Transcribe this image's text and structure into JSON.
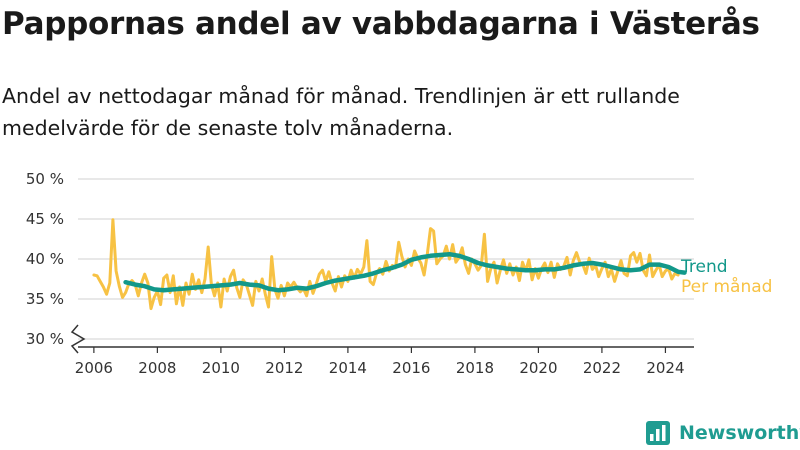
{
  "header": {
    "title": "Pappornas andel av vabbdagarna i Västerås",
    "subtitle": "Andel av nettodagar månad för månad. Trendlinjen är ett rullande medelvärde för de senaste tolv månaderna."
  },
  "brand": {
    "name": "Newsworthy",
    "icon": "newsworthy-logo-icon"
  },
  "colors": {
    "monthly": "#f7c244",
    "trend": "#12988a",
    "grid": "#d9d9d9",
    "axis": "#333333",
    "text": "#333333"
  },
  "chart_data": {
    "type": "line",
    "title": "Pappornas andel av vabbdagarna i Västerås",
    "xlabel": "",
    "ylabel": "",
    "xlim": [
      2005.5,
      2024.9
    ],
    "ylim": [
      29,
      50
    ],
    "axis_break": true,
    "grid": "horizontal",
    "legend_placement": "right, at line ends",
    "y_ticks": [
      {
        "value": 30,
        "label": "30 %"
      },
      {
        "value": 35,
        "label": "35 %"
      },
      {
        "value": 40,
        "label": "40 %"
      },
      {
        "value": 45,
        "label": "45 %"
      },
      {
        "value": 50,
        "label": "50 %"
      }
    ],
    "x_ticks": [
      {
        "value": 2006,
        "label": "2006"
      },
      {
        "value": 2008,
        "label": "2008"
      },
      {
        "value": 2010,
        "label": "2010"
      },
      {
        "value": 2012,
        "label": "2012"
      },
      {
        "value": 2014,
        "label": "2014"
      },
      {
        "value": 2016,
        "label": "2016"
      },
      {
        "value": 2018,
        "label": "2018"
      },
      {
        "value": 2020,
        "label": "2020"
      },
      {
        "value": 2022,
        "label": "2022"
      },
      {
        "value": 2024,
        "label": "2024"
      }
    ],
    "series": [
      {
        "name": "Per månad",
        "points": [
          [
            2006.0,
            38.0
          ],
          [
            2006.1,
            37.9
          ],
          [
            2006.2,
            37.2
          ],
          [
            2006.3,
            36.5
          ],
          [
            2006.4,
            35.6
          ],
          [
            2006.5,
            37.0
          ],
          [
            2006.6,
            44.9
          ],
          [
            2006.7,
            38.5
          ],
          [
            2006.8,
            36.6
          ],
          [
            2006.9,
            35.2
          ],
          [
            2007.0,
            35.8
          ],
          [
            2007.1,
            36.9
          ],
          [
            2007.2,
            37.3
          ],
          [
            2007.3,
            36.8
          ],
          [
            2007.4,
            35.4
          ],
          [
            2007.5,
            37.0
          ],
          [
            2007.6,
            38.1
          ],
          [
            2007.7,
            37.0
          ],
          [
            2007.8,
            33.8
          ],
          [
            2007.9,
            35.2
          ],
          [
            2008.0,
            36.0
          ],
          [
            2008.1,
            34.3
          ],
          [
            2008.2,
            37.6
          ],
          [
            2008.3,
            38.0
          ],
          [
            2008.4,
            35.8
          ],
          [
            2008.5,
            37.9
          ],
          [
            2008.6,
            34.4
          ],
          [
            2008.7,
            36.5
          ],
          [
            2008.8,
            34.2
          ],
          [
            2008.9,
            37.0
          ],
          [
            2009.0,
            35.6
          ],
          [
            2009.1,
            38.1
          ],
          [
            2009.2,
            36.2
          ],
          [
            2009.3,
            37.4
          ],
          [
            2009.4,
            35.8
          ],
          [
            2009.5,
            37.5
          ],
          [
            2009.6,
            41.5
          ],
          [
            2009.7,
            36.8
          ],
          [
            2009.8,
            35.4
          ],
          [
            2009.9,
            37.0
          ],
          [
            2010.0,
            34.0
          ],
          [
            2010.1,
            37.5
          ],
          [
            2010.2,
            36.0
          ],
          [
            2010.3,
            37.8
          ],
          [
            2010.4,
            38.6
          ],
          [
            2010.5,
            36.4
          ],
          [
            2010.6,
            35.2
          ],
          [
            2010.7,
            37.4
          ],
          [
            2010.8,
            36.8
          ],
          [
            2010.9,
            35.5
          ],
          [
            2011.0,
            34.2
          ],
          [
            2011.1,
            37.2
          ],
          [
            2011.2,
            36.0
          ],
          [
            2011.3,
            37.5
          ],
          [
            2011.4,
            35.6
          ],
          [
            2011.5,
            34.0
          ],
          [
            2011.6,
            40.3
          ],
          [
            2011.7,
            36.2
          ],
          [
            2011.8,
            35.1
          ],
          [
            2011.9,
            36.7
          ],
          [
            2012.0,
            35.4
          ],
          [
            2012.1,
            37.0
          ],
          [
            2012.2,
            36.5
          ],
          [
            2012.3,
            37.1
          ],
          [
            2012.4,
            36.4
          ],
          [
            2012.5,
            35.9
          ],
          [
            2012.6,
            36.3
          ],
          [
            2012.7,
            35.4
          ],
          [
            2012.8,
            37.2
          ],
          [
            2012.9,
            35.7
          ],
          [
            2013.0,
            36.8
          ],
          [
            2013.1,
            38.1
          ],
          [
            2013.2,
            38.6
          ],
          [
            2013.3,
            37.2
          ],
          [
            2013.4,
            38.4
          ],
          [
            2013.5,
            37.0
          ],
          [
            2013.6,
            36.0
          ],
          [
            2013.7,
            37.8
          ],
          [
            2013.8,
            36.5
          ],
          [
            2013.9,
            37.9
          ],
          [
            2014.0,
            37.2
          ],
          [
            2014.1,
            38.6
          ],
          [
            2014.2,
            37.6
          ],
          [
            2014.3,
            38.7
          ],
          [
            2014.4,
            38.1
          ],
          [
            2014.5,
            39.0
          ],
          [
            2014.6,
            42.3
          ],
          [
            2014.7,
            37.2
          ],
          [
            2014.8,
            36.8
          ],
          [
            2014.9,
            38.2
          ],
          [
            2015.0,
            38.8
          ],
          [
            2015.1,
            38.1
          ],
          [
            2015.2,
            39.7
          ],
          [
            2015.3,
            38.5
          ],
          [
            2015.4,
            39.2
          ],
          [
            2015.5,
            38.9
          ],
          [
            2015.6,
            42.1
          ],
          [
            2015.7,
            40.3
          ],
          [
            2015.8,
            39.0
          ],
          [
            2015.9,
            40.0
          ],
          [
            2016.0,
            39.2
          ],
          [
            2016.1,
            41.0
          ],
          [
            2016.2,
            40.1
          ],
          [
            2016.3,
            39.5
          ],
          [
            2016.4,
            38.0
          ],
          [
            2016.5,
            40.6
          ],
          [
            2016.6,
            43.8
          ],
          [
            2016.7,
            43.5
          ],
          [
            2016.8,
            39.4
          ],
          [
            2016.9,
            40.0
          ],
          [
            2017.0,
            40.4
          ],
          [
            2017.1,
            41.6
          ],
          [
            2017.2,
            40.0
          ],
          [
            2017.3,
            41.8
          ],
          [
            2017.4,
            39.6
          ],
          [
            2017.5,
            40.2
          ],
          [
            2017.6,
            41.4
          ],
          [
            2017.7,
            39.3
          ],
          [
            2017.8,
            38.2
          ],
          [
            2017.9,
            40.0
          ],
          [
            2018.0,
            39.4
          ],
          [
            2018.1,
            38.6
          ],
          [
            2018.2,
            39.2
          ],
          [
            2018.3,
            43.1
          ],
          [
            2018.4,
            37.2
          ],
          [
            2018.5,
            38.8
          ],
          [
            2018.6,
            39.6
          ],
          [
            2018.7,
            37.0
          ],
          [
            2018.8,
            38.6
          ],
          [
            2018.9,
            39.9
          ],
          [
            2019.0,
            38.2
          ],
          [
            2019.1,
            39.4
          ],
          [
            2019.2,
            38.0
          ],
          [
            2019.3,
            39.0
          ],
          [
            2019.4,
            37.3
          ],
          [
            2019.5,
            39.6
          ],
          [
            2019.6,
            38.5
          ],
          [
            2019.7,
            39.9
          ],
          [
            2019.8,
            37.4
          ],
          [
            2019.9,
            38.8
          ],
          [
            2020.0,
            37.6
          ],
          [
            2020.1,
            38.8
          ],
          [
            2020.2,
            39.5
          ],
          [
            2020.3,
            38.3
          ],
          [
            2020.4,
            39.6
          ],
          [
            2020.5,
            37.7
          ],
          [
            2020.6,
            39.4
          ],
          [
            2020.7,
            38.7
          ],
          [
            2020.8,
            39.1
          ],
          [
            2020.9,
            40.2
          ],
          [
            2021.0,
            38.0
          ],
          [
            2021.1,
            39.8
          ],
          [
            2021.2,
            40.8
          ],
          [
            2021.3,
            39.6
          ],
          [
            2021.4,
            39.3
          ],
          [
            2021.5,
            38.2
          ],
          [
            2021.6,
            40.1
          ],
          [
            2021.7,
            38.7
          ],
          [
            2021.8,
            39.2
          ],
          [
            2021.9,
            37.8
          ],
          [
            2022.0,
            38.8
          ],
          [
            2022.1,
            39.6
          ],
          [
            2022.2,
            37.8
          ],
          [
            2022.3,
            38.7
          ],
          [
            2022.4,
            37.2
          ],
          [
            2022.5,
            38.5
          ],
          [
            2022.6,
            39.8
          ],
          [
            2022.7,
            38.2
          ],
          [
            2022.8,
            37.9
          ],
          [
            2022.9,
            40.4
          ],
          [
            2023.0,
            40.8
          ],
          [
            2023.1,
            39.6
          ],
          [
            2023.2,
            40.7
          ],
          [
            2023.3,
            38.6
          ],
          [
            2023.4,
            37.9
          ],
          [
            2023.5,
            40.5
          ],
          [
            2023.6,
            37.8
          ],
          [
            2023.7,
            38.6
          ],
          [
            2023.8,
            39.3
          ],
          [
            2023.9,
            37.8
          ],
          [
            2024.0,
            38.5
          ],
          [
            2024.1,
            38.8
          ],
          [
            2024.2,
            37.5
          ],
          [
            2024.3,
            38.2
          ],
          [
            2024.4,
            38.0
          ]
        ]
      },
      {
        "name": "Trend",
        "points": [
          [
            2007.0,
            37.1
          ],
          [
            2007.3,
            36.8
          ],
          [
            2007.6,
            36.6
          ],
          [
            2007.9,
            36.2
          ],
          [
            2008.2,
            36.1
          ],
          [
            2008.5,
            36.2
          ],
          [
            2008.8,
            36.3
          ],
          [
            2009.1,
            36.4
          ],
          [
            2009.4,
            36.5
          ],
          [
            2009.7,
            36.6
          ],
          [
            2010.0,
            36.7
          ],
          [
            2010.3,
            36.8
          ],
          [
            2010.6,
            37.0
          ],
          [
            2010.9,
            36.8
          ],
          [
            2011.2,
            36.7
          ],
          [
            2011.5,
            36.3
          ],
          [
            2011.8,
            36.1
          ],
          [
            2012.1,
            36.2
          ],
          [
            2012.4,
            36.4
          ],
          [
            2012.7,
            36.3
          ],
          [
            2013.0,
            36.6
          ],
          [
            2013.3,
            37.0
          ],
          [
            2013.6,
            37.3
          ],
          [
            2013.9,
            37.5
          ],
          [
            2014.2,
            37.7
          ],
          [
            2014.5,
            37.9
          ],
          [
            2014.8,
            38.2
          ],
          [
            2015.1,
            38.6
          ],
          [
            2015.4,
            38.9
          ],
          [
            2015.7,
            39.3
          ],
          [
            2016.0,
            39.9
          ],
          [
            2016.3,
            40.2
          ],
          [
            2016.6,
            40.4
          ],
          [
            2016.9,
            40.5
          ],
          [
            2017.2,
            40.6
          ],
          [
            2017.5,
            40.4
          ],
          [
            2017.8,
            40.0
          ],
          [
            2018.1,
            39.5
          ],
          [
            2018.4,
            39.2
          ],
          [
            2018.7,
            39.0
          ],
          [
            2019.0,
            38.8
          ],
          [
            2019.3,
            38.7
          ],
          [
            2019.6,
            38.6
          ],
          [
            2019.9,
            38.6
          ],
          [
            2020.2,
            38.7
          ],
          [
            2020.5,
            38.7
          ],
          [
            2020.8,
            38.9
          ],
          [
            2021.1,
            39.2
          ],
          [
            2021.4,
            39.4
          ],
          [
            2021.7,
            39.5
          ],
          [
            2022.0,
            39.3
          ],
          [
            2022.3,
            39.0
          ],
          [
            2022.6,
            38.7
          ],
          [
            2022.9,
            38.6
          ],
          [
            2023.2,
            38.7
          ],
          [
            2023.5,
            39.3
          ],
          [
            2023.8,
            39.3
          ],
          [
            2024.1,
            39.0
          ],
          [
            2024.4,
            38.4
          ],
          [
            2024.6,
            38.3
          ]
        ]
      }
    ]
  }
}
